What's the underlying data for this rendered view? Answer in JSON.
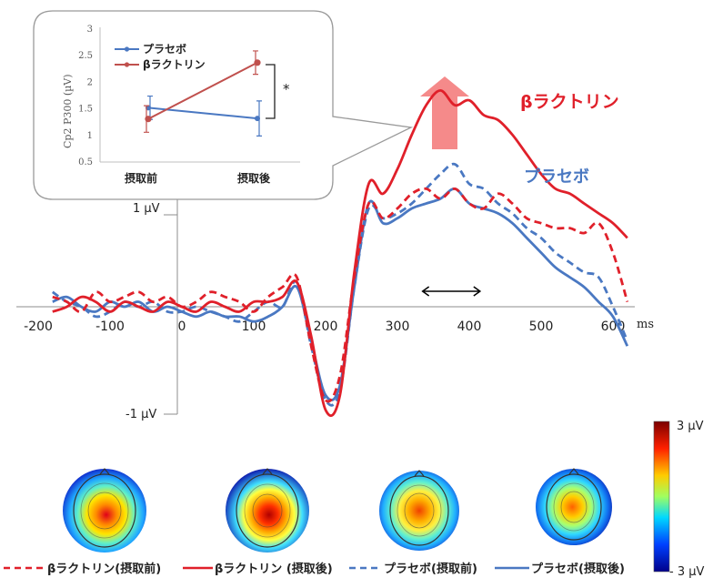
{
  "chart_data": [
    {
      "type": "line",
      "title": "",
      "xlabel": "",
      "ylabel": "",
      "x_unit": "ms",
      "xlim": [
        -200,
        620
      ],
      "ylim": [
        -1.4,
        2.2
      ],
      "x_ticks": [
        "-200",
        "-100",
        "0",
        "100",
        "200",
        "300",
        "400",
        "500",
        "600"
      ],
      "y_ticks": [
        "1 µV",
        "-1 µV"
      ],
      "series": [
        {
          "name": "βラクトリン(摂取前)",
          "color": "#e0202a",
          "style": "dashed",
          "x": [
            -180,
            -160,
            -140,
            -120,
            -100,
            -80,
            -60,
            -40,
            -20,
            0,
            20,
            40,
            60,
            80,
            100,
            120,
            140,
            160,
            180,
            200,
            220,
            240,
            260,
            280,
            300,
            320,
            340,
            360,
            380,
            400,
            420,
            440,
            460,
            480,
            500,
            520,
            540,
            560,
            580,
            600,
            620
          ],
          "y": [
            0.1,
            0.05,
            -0.05,
            0.15,
            0.05,
            0.1,
            0.15,
            0.05,
            0.1,
            0.0,
            0.05,
            0.15,
            0.1,
            0.05,
            -0.05,
            0.1,
            0.2,
            0.3,
            -0.4,
            -0.95,
            -0.7,
            0.3,
            1.05,
            0.9,
            1.0,
            1.15,
            1.2,
            1.1,
            1.2,
            1.05,
            1.0,
            1.15,
            1.05,
            0.9,
            0.85,
            0.8,
            0.8,
            0.75,
            0.85,
            0.55,
            0.05
          ]
        },
        {
          "name": "βラクトリン (摂取後)",
          "color": "#e0202a",
          "style": "solid",
          "x": [
            -180,
            -160,
            -140,
            -120,
            -100,
            -80,
            -60,
            -40,
            -20,
            0,
            20,
            40,
            60,
            80,
            100,
            120,
            140,
            160,
            180,
            200,
            220,
            240,
            260,
            280,
            300,
            320,
            340,
            360,
            380,
            400,
            420,
            440,
            460,
            480,
            500,
            520,
            540,
            560,
            580,
            600,
            620
          ],
          "y": [
            -0.05,
            0.0,
            0.1,
            0.05,
            -0.05,
            0.05,
            0.0,
            -0.05,
            0.05,
            0.0,
            -0.05,
            0.05,
            0.0,
            -0.05,
            0.05,
            0.05,
            0.1,
            0.25,
            -0.3,
            -1.05,
            -0.9,
            0.35,
            1.25,
            1.15,
            1.4,
            1.75,
            2.05,
            2.2,
            2.05,
            2.1,
            1.95,
            1.9,
            1.75,
            1.55,
            1.35,
            1.2,
            1.15,
            1.05,
            0.95,
            0.85,
            0.7
          ]
        },
        {
          "name": "プラセボ(摂取前)",
          "color": "#4a78c2",
          "style": "dashed",
          "x": [
            -180,
            -160,
            -140,
            -120,
            -100,
            -80,
            -60,
            -40,
            -20,
            0,
            20,
            40,
            60,
            80,
            100,
            120,
            140,
            160,
            180,
            200,
            220,
            240,
            260,
            280,
            300,
            320,
            340,
            360,
            380,
            400,
            420,
            440,
            460,
            480,
            500,
            520,
            540,
            560,
            580,
            600,
            620
          ],
          "y": [
            0.15,
            0.05,
            0.0,
            -0.1,
            -0.05,
            0.05,
            0.0,
            0.05,
            -0.05,
            -0.05,
            0.0,
            -0.05,
            -0.1,
            -0.15,
            -0.05,
            0.05,
            0.0,
            0.25,
            -0.4,
            -0.95,
            -0.85,
            0.2,
            1.0,
            0.9,
            0.95,
            1.05,
            1.2,
            1.35,
            1.45,
            1.25,
            1.2,
            1.05,
            0.95,
            0.8,
            0.7,
            0.55,
            0.45,
            0.35,
            0.3,
            0.0,
            -0.35
          ]
        },
        {
          "name": "プラセボ(摂取後)",
          "color": "#4a78c2",
          "style": "solid",
          "x": [
            -180,
            -160,
            -140,
            -120,
            -100,
            -80,
            -60,
            -40,
            -20,
            0,
            20,
            40,
            60,
            80,
            100,
            120,
            140,
            160,
            180,
            200,
            220,
            240,
            260,
            280,
            300,
            320,
            340,
            360,
            380,
            400,
            420,
            440,
            460,
            480,
            500,
            520,
            540,
            560,
            580,
            600,
            620
          ],
          "y": [
            0.05,
            0.1,
            0.0,
            -0.05,
            0.05,
            0.0,
            0.05,
            -0.05,
            0.0,
            -0.05,
            -0.1,
            -0.05,
            -0.1,
            -0.1,
            -0.15,
            -0.1,
            0.0,
            0.2,
            -0.35,
            -0.9,
            -0.8,
            0.2,
            1.05,
            0.85,
            0.9,
            1.0,
            1.05,
            1.1,
            1.2,
            1.05,
            1.0,
            0.95,
            0.85,
            0.7,
            0.55,
            0.4,
            0.3,
            0.2,
            0.05,
            -0.1,
            -0.4
          ]
        }
      ],
      "annotations": [
        {
          "text": "βラクトリン",
          "color": "#e0202a"
        },
        {
          "text": "プラセボ",
          "color": "#4a78c2"
        }
      ],
      "marks": {
        "arrow_color": "#f58a8a",
        "window_ms": [
          335,
          415
        ]
      }
    },
    {
      "type": "line",
      "title": "",
      "ylabel": "Cp2 P300 (µV)",
      "xlabel": "",
      "categories": [
        "摂取前",
        "摂取後"
      ],
      "ylim": [
        0.5,
        3
      ],
      "y_ticks": [
        "0.5",
        "1",
        "1.5",
        "2",
        "2.5",
        "3"
      ],
      "series": [
        {
          "name": "プラセボ",
          "color": "#4a78c2",
          "values": [
            1.52,
            1.32
          ],
          "errors": [
            0.22,
            0.33
          ]
        },
        {
          "name": "βラクトリン",
          "color": "#c0504d",
          "values": [
            1.31,
            2.37
          ],
          "errors": [
            0.25,
            0.22
          ]
        }
      ],
      "significance": "*",
      "legend": "top-left"
    }
  ],
  "colorbar": {
    "max_label": "3 µV",
    "min_label": "- 3 µV"
  },
  "legend": {
    "items": [
      {
        "label": "βラクトリン(摂取前)",
        "color": "#e0202a",
        "style": "dashed"
      },
      {
        "label": "βラクトリン (摂取後)",
        "color": "#e0202a",
        "style": "solid"
      },
      {
        "label": "プラセボ(摂取前)",
        "color": "#4a78c2",
        "style": "dashed"
      },
      {
        "label": "プラセボ(摂取後)",
        "color": "#4a78c2",
        "style": "solid"
      }
    ]
  },
  "topomaps": {
    "names": [
      "βラクトリン(摂取前)",
      "βラクトリン (摂取後)",
      "プラセボ(摂取前)",
      "プラセボ(摂取後)"
    ]
  }
}
